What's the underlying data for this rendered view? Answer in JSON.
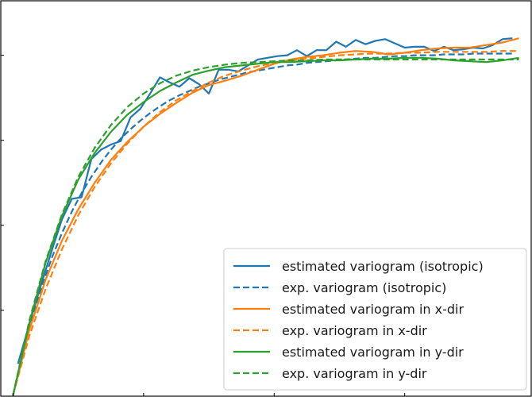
{
  "chart_data": {
    "type": "line",
    "title": "",
    "xlabel": "",
    "ylabel": "",
    "xlim": [
      -0.4,
      15.9
    ],
    "ylim": [
      -0.02,
      4.65
    ],
    "grid": false,
    "legend_position": "bottom-right",
    "series": [
      {
        "name": "estimated variogram (isotropic)",
        "color": "#1f77b4",
        "style": "solid",
        "x": [
          0.15,
          0.6,
          0.9,
          1.2,
          1.5,
          1.8,
          2.1,
          2.4,
          2.7,
          3.0,
          3.3,
          3.6,
          3.9,
          4.2,
          4.5,
          4.8,
          5.1,
          5.4,
          5.7,
          6.0,
          6.3,
          6.6,
          6.9,
          7.2,
          7.5,
          7.8,
          8.1,
          8.4,
          8.7,
          9.0,
          9.3,
          9.6,
          9.9,
          10.2,
          10.5,
          10.8,
          11.1,
          11.4,
          11.7,
          12.0,
          12.3,
          12.6,
          12.9,
          13.2,
          13.5,
          13.8,
          14.1,
          14.4,
          14.7,
          15.0,
          15.3
        ],
        "y": [
          0.37,
          0.97,
          1.35,
          1.72,
          2.07,
          2.31,
          2.33,
          2.78,
          2.89,
          2.95,
          2.99,
          3.27,
          3.37,
          3.55,
          3.74,
          3.68,
          3.63,
          3.73,
          3.66,
          3.55,
          3.83,
          3.83,
          3.81,
          3.88,
          3.95,
          3.97,
          3.99,
          4.0,
          4.06,
          3.99,
          4.06,
          4.06,
          4.16,
          4.1,
          4.18,
          4.13,
          4.17,
          4.19,
          4.14,
          4.09,
          4.1,
          4.1,
          4.05,
          4.1,
          4.06,
          4.07,
          4.09,
          4.08,
          4.12,
          4.19,
          4.2
        ]
      },
      {
        "name": "exp. variogram (isotropic)",
        "color": "#1f77b4",
        "style": "dashed",
        "x": [
          0.0,
          0.3,
          0.6,
          0.9,
          1.2,
          1.5,
          1.8,
          2.1,
          2.4,
          2.7,
          3.0,
          3.3,
          3.6,
          3.9,
          4.2,
          4.5,
          4.8,
          5.1,
          5.4,
          5.7,
          6.0,
          6.3,
          6.6,
          6.9,
          7.2,
          7.5,
          7.8,
          8.1,
          8.4,
          8.7,
          9.0,
          9.3,
          9.6,
          9.9,
          10.2,
          10.5,
          10.8,
          11.1,
          11.4,
          11.7,
          12.0,
          12.3,
          12.6,
          12.9,
          13.2,
          13.5,
          13.8,
          14.1,
          14.4,
          14.7,
          15.0,
          15.3
        ],
        "y": [
          0.0,
          0.5,
          0.93,
          1.3,
          1.63,
          1.91,
          2.16,
          2.38,
          2.57,
          2.74,
          2.89,
          3.02,
          3.13,
          3.23,
          3.32,
          3.4,
          3.47,
          3.53,
          3.58,
          3.63,
          3.67,
          3.71,
          3.74,
          3.77,
          3.8,
          3.82,
          3.84,
          3.86,
          3.88,
          3.89,
          3.91,
          3.92,
          3.93,
          3.94,
          3.95,
          3.96,
          3.97,
          3.97,
          3.98,
          3.99,
          3.99,
          4.0,
          4.0,
          4.0,
          4.01,
          4.01,
          4.01,
          4.02,
          4.02,
          4.02,
          4.02,
          4.02
        ]
      },
      {
        "name": "estimated variogram in x-dir",
        "color": "#ff7f0e",
        "style": "solid",
        "x": [
          0.0,
          0.5,
          1.0,
          1.5,
          2.0,
          2.5,
          3.0,
          3.5,
          4.0,
          4.5,
          5.0,
          5.5,
          6.0,
          6.5,
          7.0,
          7.5,
          8.0,
          8.5,
          9.0,
          9.5,
          10.0,
          10.5,
          11.0,
          11.5,
          12.0,
          12.5,
          13.0,
          13.5,
          14.0,
          14.5,
          15.0,
          15.5
        ],
        "y": [
          0.0,
          0.77,
          1.36,
          1.82,
          2.19,
          2.5,
          2.77,
          2.98,
          3.16,
          3.31,
          3.44,
          3.56,
          3.65,
          3.7,
          3.76,
          3.83,
          3.9,
          3.95,
          3.98,
          4.0,
          4.03,
          4.05,
          4.04,
          4.01,
          4.03,
          4.06,
          4.08,
          4.09,
          4.09,
          4.12,
          4.15,
          4.2
        ]
      },
      {
        "name": "exp. variogram in x-dir",
        "color": "#ff7f0e",
        "style": "dashed",
        "x": [
          0.0,
          0.5,
          1.0,
          1.5,
          2.0,
          2.5,
          3.0,
          3.5,
          4.0,
          4.5,
          5.0,
          5.5,
          6.0,
          6.5,
          7.0,
          7.5,
          8.0,
          8.5,
          9.0,
          9.5,
          10.0,
          10.5,
          11.0,
          11.5,
          12.0,
          12.5,
          13.0,
          13.5,
          14.0,
          14.5,
          15.0,
          15.5
        ],
        "y": [
          0.0,
          0.7,
          1.25,
          1.72,
          2.12,
          2.45,
          2.73,
          2.96,
          3.16,
          3.33,
          3.47,
          3.58,
          3.68,
          3.76,
          3.82,
          3.87,
          3.91,
          3.94,
          3.96,
          3.98,
          4.0,
          4.01,
          4.02,
          4.02,
          4.03,
          4.03,
          4.04,
          4.04,
          4.04,
          4.04,
          4.05,
          4.05
        ]
      },
      {
        "name": "estimated variogram in y-dir",
        "color": "#2ca02c",
        "style": "solid",
        "x": [
          0.0,
          0.5,
          1.0,
          1.5,
          2.0,
          2.5,
          3.0,
          3.5,
          4.0,
          4.5,
          5.0,
          5.5,
          6.0,
          6.5,
          7.0,
          7.5,
          8.0,
          8.5,
          9.0,
          9.5,
          10.0,
          10.5,
          11.0,
          11.5,
          12.0,
          12.5,
          13.0,
          13.5,
          14.0,
          14.5,
          15.0,
          15.5
        ],
        "y": [
          0.0,
          0.85,
          1.56,
          2.11,
          2.54,
          2.85,
          3.1,
          3.3,
          3.45,
          3.58,
          3.68,
          3.77,
          3.82,
          3.86,
          3.88,
          3.9,
          3.92,
          3.92,
          3.93,
          3.94,
          3.94,
          3.95,
          3.96,
          3.96,
          3.97,
          3.97,
          3.96,
          3.94,
          3.93,
          3.92,
          3.94,
          3.97
        ]
      },
      {
        "name": "exp. variogram in y-dir",
        "color": "#2ca02c",
        "style": "dashed",
        "x": [
          0.0,
          0.5,
          1.0,
          1.5,
          2.0,
          2.5,
          3.0,
          3.5,
          4.0,
          4.5,
          5.0,
          5.5,
          6.0,
          6.5,
          7.0,
          7.5,
          8.0,
          8.5,
          9.0,
          9.5,
          10.0,
          10.5,
          11.0,
          11.5,
          12.0,
          12.5,
          13.0,
          13.5,
          14.0,
          14.5,
          15.0,
          15.5
        ],
        "y": [
          0.0,
          0.88,
          1.58,
          2.13,
          2.57,
          2.91,
          3.18,
          3.39,
          3.55,
          3.67,
          3.76,
          3.82,
          3.86,
          3.89,
          3.91,
          3.92,
          3.93,
          3.94,
          3.94,
          3.95,
          3.95,
          3.95,
          3.95,
          3.95,
          3.95,
          3.95,
          3.95,
          3.95,
          3.95,
          3.95,
          3.95,
          3.95
        ]
      }
    ]
  }
}
